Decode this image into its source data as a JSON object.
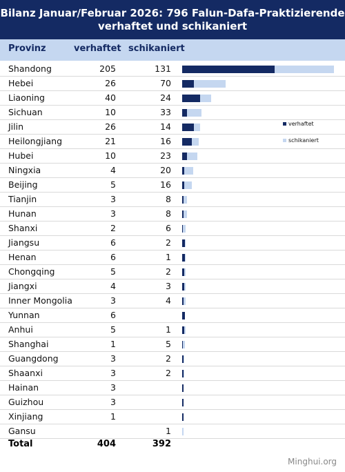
{
  "title_line1": "Bilanz Januar/Februar 2026: 796 Falun-Dafa-Praktizierende",
  "title_line2": "verhaftet und schikaniert",
  "headers": {
    "province": "Provinz",
    "arrested": "verhaftet",
    "harassed": "schikaniert"
  },
  "legend": {
    "arrested": "verhaftet",
    "harassed": "schikaniert"
  },
  "total": {
    "label": "Total",
    "arrested": "404",
    "harassed": "392"
  },
  "source": "Minghui.org",
  "colors": {
    "header_bg": "#142a63",
    "arrested": "#142a63",
    "harassed": "#c5d7f0"
  },
  "chart_data": {
    "type": "bar",
    "stacked": true,
    "orientation": "horizontal",
    "categories": [
      "Shandong",
      "Hebei",
      "Liaoning",
      "Sichuan",
      "Jilin",
      "Heilongjiang",
      "Hubei",
      "Ningxia",
      "Beijing",
      "Tianjin",
      "Hunan",
      "Shanxi",
      "Jiangsu",
      "Henan",
      "Chongqing",
      "Jiangxi",
      "Inner Mongolia",
      "Yunnan",
      "Anhui",
      "Shanghai",
      "Guangdong",
      "Shaanxi",
      "Hainan",
      "Guizhou",
      "Xinjiang",
      "Gansu"
    ],
    "series": [
      {
        "name": "verhaftet",
        "values": [
          205,
          26,
          40,
          10,
          26,
          21,
          10,
          4,
          5,
          3,
          3,
          2,
          6,
          6,
          5,
          4,
          3,
          6,
          5,
          1,
          3,
          3,
          3,
          3,
          1,
          null
        ]
      },
      {
        "name": "schikaniert",
        "values": [
          131,
          70,
          24,
          33,
          14,
          16,
          23,
          20,
          16,
          8,
          8,
          6,
          2,
          1,
          2,
          3,
          4,
          null,
          1,
          5,
          2,
          2,
          null,
          null,
          null,
          1
        ]
      }
    ],
    "legend_position": "right",
    "title": "Bilanz Januar/Februar 2026: 796 Falun-Dafa-Praktizierende verhaftet und schikaniert"
  }
}
